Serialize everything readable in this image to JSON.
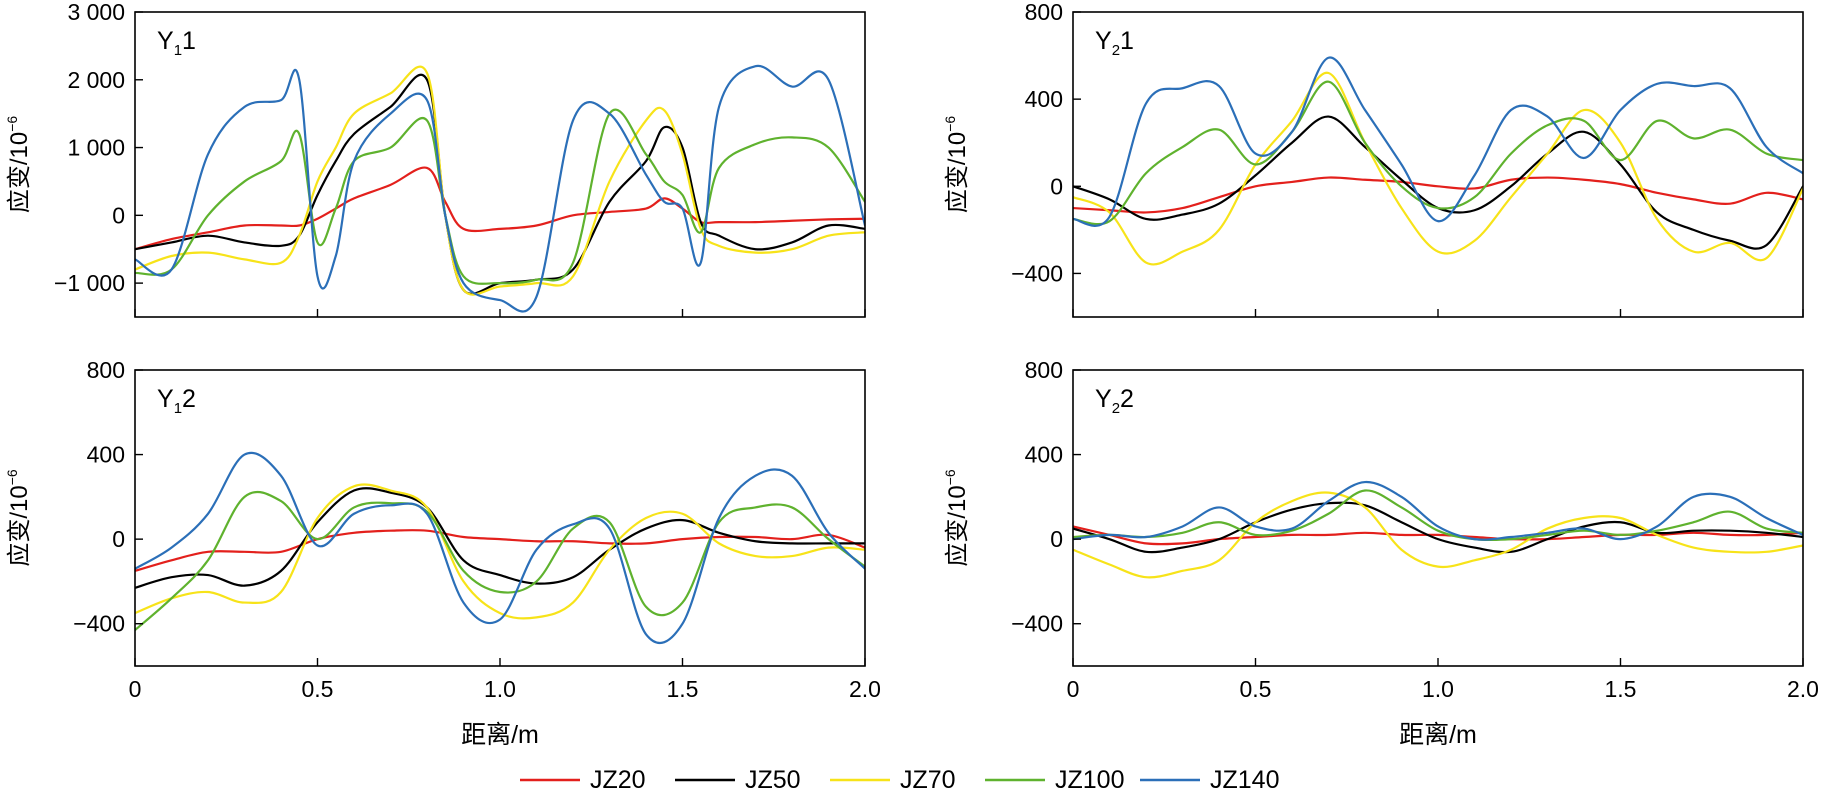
{
  "figure": {
    "x_label": "距离/m",
    "y_label": "应变/10",
    "y_label_exp": "−6",
    "legend": [
      {
        "name": "JZ20",
        "color": "#e3201c"
      },
      {
        "name": "JZ50",
        "color": "#000000"
      },
      {
        "name": "JZ70",
        "color": "#f7e319"
      },
      {
        "name": "JZ100",
        "color": "#5fb22e"
      },
      {
        "name": "JZ140",
        "color": "#2b6fb8"
      }
    ]
  },
  "chart_data": [
    {
      "type": "line",
      "title": "Y11",
      "title_main": "Y",
      "title_sub": "1",
      "title_num": "1",
      "xlim": [
        0,
        2.0
      ],
      "ylim": [
        -1500,
        3000
      ],
      "xticks": [
        "0",
        "0.5",
        "1.0",
        "1.5",
        "2.0"
      ],
      "yticks": [
        {
          "v": 3000,
          "label": "3 000"
        },
        {
          "v": 2000,
          "label": "2 000"
        },
        {
          "v": 1000,
          "label": "1 000"
        },
        {
          "v": 0,
          "label": "0"
        },
        {
          "v": -1000,
          "label": "−1 000"
        }
      ],
      "x": [
        0,
        0.1,
        0.2,
        0.3,
        0.4,
        0.45,
        0.5,
        0.55,
        0.6,
        0.7,
        0.8,
        0.85,
        0.9,
        1.0,
        1.1,
        1.2,
        1.3,
        1.4,
        1.45,
        1.5,
        1.55,
        1.6,
        1.7,
        1.8,
        1.9,
        2.0
      ],
      "series": [
        {
          "name": "JZ20",
          "color": "#e3201c",
          "values": [
            -500,
            -350,
            -250,
            -150,
            -150,
            -150,
            -50,
            100,
            250,
            450,
            700,
            200,
            -200,
            -200,
            -150,
            0,
            50,
            100,
            250,
            100,
            -100,
            -100,
            -100,
            -80,
            -60,
            -50
          ]
        },
        {
          "name": "JZ50",
          "color": "#000000",
          "values": [
            -500,
            -400,
            -300,
            -400,
            -450,
            -300,
            300,
            800,
            1200,
            1600,
            2000,
            0,
            -1100,
            -1000,
            -950,
            -800,
            200,
            800,
            1300,
            1000,
            -100,
            -300,
            -500,
            -400,
            -150,
            -200
          ]
        },
        {
          "name": "JZ70",
          "color": "#f7e319",
          "values": [
            -800,
            -600,
            -550,
            -650,
            -700,
            -300,
            500,
            1000,
            1500,
            1800,
            2100,
            0,
            -1100,
            -1050,
            -1000,
            -900,
            500,
            1400,
            1550,
            900,
            -200,
            -450,
            -550,
            -500,
            -300,
            -250
          ]
        },
        {
          "name": "JZ100",
          "color": "#5fb22e",
          "values": [
            -850,
            -800,
            0,
            500,
            800,
            1200,
            -400,
            100,
            800,
            1000,
            1400,
            0,
            -900,
            -1000,
            -950,
            -700,
            1500,
            900,
            500,
            300,
            -250,
            700,
            1050,
            1150,
            1000,
            200
          ]
        },
        {
          "name": "JZ140",
          "color": "#2b6fb8",
          "values": [
            -650,
            -800,
            900,
            1600,
            1700,
            2000,
            -900,
            -600,
            800,
            1500,
            1700,
            0,
            -1000,
            -1250,
            -1200,
            1400,
            1500,
            600,
            200,
            100,
            -700,
            1600,
            2200,
            1900,
            2000,
            -150
          ]
        }
      ]
    },
    {
      "type": "line",
      "title": "Y21",
      "title_main": "Y",
      "title_sub": "2",
      "title_num": "1",
      "xlim": [
        0,
        2.0
      ],
      "ylim": [
        -600,
        800
      ],
      "xticks": [
        "0",
        "0.5",
        "1.0",
        "1.5",
        "2.0"
      ],
      "yticks": [
        {
          "v": 800,
          "label": "800"
        },
        {
          "v": 400,
          "label": "400"
        },
        {
          "v": 0,
          "label": "0"
        },
        {
          "v": -400,
          "label": "−400"
        }
      ],
      "x": [
        0,
        0.1,
        0.2,
        0.3,
        0.4,
        0.5,
        0.6,
        0.7,
        0.8,
        0.9,
        1.0,
        1.1,
        1.2,
        1.3,
        1.4,
        1.5,
        1.6,
        1.7,
        1.8,
        1.9,
        2.0
      ],
      "series": [
        {
          "name": "JZ20",
          "color": "#e3201c",
          "values": [
            -100,
            -110,
            -120,
            -100,
            -50,
            0,
            20,
            40,
            30,
            20,
            0,
            -10,
            30,
            40,
            30,
            10,
            -30,
            -60,
            -80,
            -30,
            -60
          ]
        },
        {
          "name": "JZ50",
          "color": "#000000",
          "values": [
            0,
            -60,
            -150,
            -130,
            -80,
            50,
            200,
            320,
            180,
            30,
            -100,
            -110,
            0,
            150,
            250,
            100,
            -120,
            -200,
            -250,
            -270,
            0
          ]
        },
        {
          "name": "JZ70",
          "color": "#f7e319",
          "values": [
            -50,
            -120,
            -350,
            -300,
            -200,
            100,
            300,
            520,
            200,
            -100,
            -300,
            -250,
            -50,
            150,
            350,
            200,
            -150,
            -300,
            -260,
            -330,
            -10
          ]
        },
        {
          "name": "JZ100",
          "color": "#5fb22e",
          "values": [
            -150,
            -160,
            60,
            180,
            260,
            100,
            250,
            480,
            200,
            0,
            -100,
            -50,
            150,
            280,
            300,
            120,
            300,
            220,
            260,
            150,
            120
          ]
        },
        {
          "name": "JZ140",
          "color": "#2b6fb8",
          "values": [
            -150,
            -140,
            380,
            450,
            460,
            150,
            250,
            590,
            350,
            100,
            -160,
            50,
            350,
            320,
            130,
            350,
            470,
            460,
            450,
            180,
            60
          ]
        }
      ]
    },
    {
      "type": "line",
      "title": "Y12",
      "title_main": "Y",
      "title_sub": "1",
      "title_num": "2",
      "xlim": [
        0,
        2.0
      ],
      "ylim": [
        -600,
        800
      ],
      "xticks": [
        "0",
        "0.5",
        "1.0",
        "1.5",
        "2.0"
      ],
      "yticks": [
        {
          "v": 800,
          "label": "800"
        },
        {
          "v": 400,
          "label": "400"
        },
        {
          "v": 0,
          "label": "0"
        },
        {
          "v": -400,
          "label": "−400"
        }
      ],
      "x": [
        0,
        0.1,
        0.2,
        0.3,
        0.4,
        0.5,
        0.6,
        0.7,
        0.8,
        0.9,
        1.0,
        1.1,
        1.2,
        1.3,
        1.4,
        1.5,
        1.6,
        1.7,
        1.8,
        1.9,
        2.0
      ],
      "series": [
        {
          "name": "JZ20",
          "color": "#e3201c",
          "values": [
            -150,
            -100,
            -60,
            -60,
            -60,
            0,
            30,
            40,
            40,
            10,
            0,
            -10,
            -10,
            -20,
            -20,
            0,
            10,
            10,
            0,
            20,
            -40
          ]
        },
        {
          "name": "JZ50",
          "color": "#000000",
          "values": [
            -230,
            -180,
            -170,
            -220,
            -150,
            80,
            230,
            220,
            150,
            -100,
            -170,
            -210,
            -180,
            -50,
            50,
            90,
            30,
            -10,
            -20,
            -20,
            -20
          ]
        },
        {
          "name": "JZ70",
          "color": "#f7e319",
          "values": [
            -350,
            -280,
            -250,
            -300,
            -250,
            100,
            250,
            230,
            150,
            -200,
            -350,
            -370,
            -300,
            -50,
            100,
            120,
            -20,
            -80,
            -80,
            -40,
            -50
          ]
        },
        {
          "name": "JZ100",
          "color": "#5fb22e",
          "values": [
            -430,
            -280,
            -100,
            200,
            180,
            0,
            150,
            170,
            130,
            -150,
            -250,
            -200,
            50,
            80,
            -320,
            -300,
            80,
            150,
            150,
            0,
            -130
          ]
        },
        {
          "name": "JZ140",
          "color": "#2b6fb8",
          "values": [
            -140,
            -40,
            120,
            400,
            300,
            -30,
            120,
            160,
            120,
            -300,
            -380,
            -50,
            70,
            50,
            -450,
            -400,
            100,
            300,
            300,
            30,
            -140
          ]
        }
      ]
    },
    {
      "type": "line",
      "title": "Y22",
      "title_main": "Y",
      "title_sub": "2",
      "title_num": "2",
      "xlim": [
        0,
        2.0
      ],
      "ylim": [
        -600,
        800
      ],
      "xticks": [
        "0",
        "0.5",
        "1.0",
        "1.5",
        "2.0"
      ],
      "yticks": [
        {
          "v": 800,
          "label": "800"
        },
        {
          "v": 400,
          "label": "400"
        },
        {
          "v": 0,
          "label": "0"
        },
        {
          "v": -400,
          "label": "−400"
        }
      ],
      "x": [
        0,
        0.1,
        0.2,
        0.3,
        0.4,
        0.5,
        0.6,
        0.7,
        0.8,
        0.9,
        1.0,
        1.1,
        1.2,
        1.3,
        1.4,
        1.5,
        1.6,
        1.7,
        1.8,
        1.9,
        2.0
      ],
      "series": [
        {
          "name": "JZ20",
          "color": "#e3201c",
          "values": [
            60,
            20,
            -20,
            -20,
            0,
            10,
            20,
            20,
            30,
            20,
            20,
            10,
            0,
            0,
            10,
            20,
            20,
            30,
            20,
            20,
            30
          ]
        },
        {
          "name": "JZ50",
          "color": "#000000",
          "values": [
            50,
            0,
            -60,
            -40,
            0,
            80,
            140,
            170,
            160,
            80,
            0,
            -40,
            -60,
            0,
            60,
            80,
            30,
            40,
            40,
            30,
            10
          ]
        },
        {
          "name": "JZ70",
          "color": "#f7e319",
          "values": [
            -50,
            -120,
            -180,
            -150,
            -100,
            80,
            180,
            220,
            150,
            -50,
            -130,
            -100,
            -50,
            50,
            100,
            100,
            20,
            -40,
            -60,
            -60,
            -30
          ]
        },
        {
          "name": "JZ100",
          "color": "#5fb22e",
          "values": [
            10,
            20,
            10,
            30,
            80,
            20,
            40,
            120,
            230,
            150,
            40,
            0,
            0,
            20,
            40,
            20,
            40,
            80,
            130,
            50,
            30
          ]
        },
        {
          "name": "JZ140",
          "color": "#2b6fb8",
          "values": [
            0,
            20,
            10,
            60,
            150,
            60,
            50,
            180,
            270,
            200,
            60,
            0,
            10,
            30,
            50,
            0,
            60,
            200,
            200,
            100,
            20
          ]
        }
      ]
    }
  ]
}
